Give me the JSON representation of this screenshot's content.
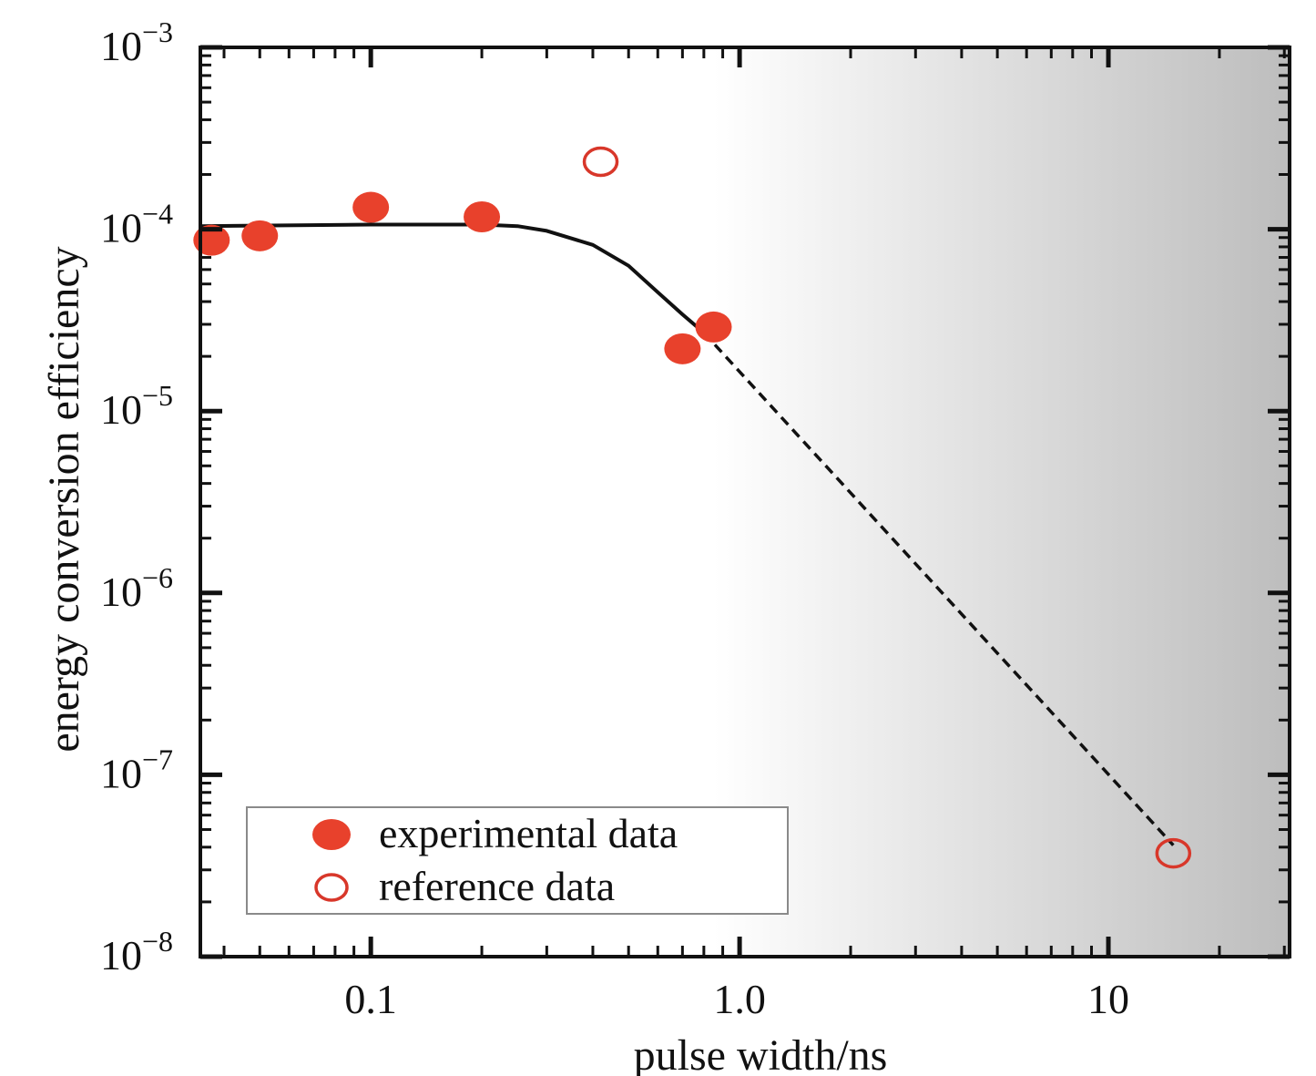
{
  "chart_data": {
    "type": "scatter",
    "title": "",
    "xlabel": "pulse width/ns",
    "ylabel": "energy conversion efficiency",
    "x_scale": "log",
    "y_scale": "log",
    "xlim": [
      0.0345,
      31
    ],
    "ylim": [
      1e-08,
      0.001
    ],
    "x_ticks": [
      {
        "value": 0.1,
        "label": "0.1"
      },
      {
        "value": 1.0,
        "label": "1.0"
      },
      {
        "value": 10,
        "label": "10"
      }
    ],
    "y_ticks": [
      {
        "value": 0.001,
        "base": "10",
        "exp": "−3"
      },
      {
        "value": 0.0001,
        "base": "10",
        "exp": "−4"
      },
      {
        "value": 1e-05,
        "base": "10",
        "exp": "−5"
      },
      {
        "value": 1e-06,
        "base": "10",
        "exp": "−6"
      },
      {
        "value": 1e-07,
        "base": "10",
        "exp": "−7"
      },
      {
        "value": 1e-08,
        "base": "10",
        "exp": "−8"
      }
    ],
    "series": [
      {
        "name": "experimental data",
        "marker": "filled-circle",
        "color": "#e8412c",
        "points": [
          {
            "x": 0.037,
            "y": 8.7e-05
          },
          {
            "x": 0.05,
            "y": 9.2e-05
          },
          {
            "x": 0.1,
            "y": 0.000132
          },
          {
            "x": 0.2,
            "y": 0.000117
          },
          {
            "x": 0.7,
            "y": 2.2e-05
          },
          {
            "x": 0.85,
            "y": 2.9e-05
          }
        ]
      },
      {
        "name": "reference data",
        "marker": "open-circle",
        "color": "#d8372a",
        "points": [
          {
            "x": 0.42,
            "y": 0.000235
          },
          {
            "x": 15,
            "y": 3.7e-08
          }
        ]
      }
    ],
    "fit_curve": {
      "style": "solid",
      "color": "#111111",
      "points": [
        {
          "x": 0.0345,
          "y": 0.000104
        },
        {
          "x": 0.1,
          "y": 0.000106
        },
        {
          "x": 0.2,
          "y": 0.000106
        },
        {
          "x": 0.25,
          "y": 0.000104
        },
        {
          "x": 0.3,
          "y": 9.8e-05
        },
        {
          "x": 0.4,
          "y": 8.2e-05
        },
        {
          "x": 0.5,
          "y": 6.3e-05
        },
        {
          "x": 0.6,
          "y": 4.5e-05
        },
        {
          "x": 0.7,
          "y": 3.4e-05
        },
        {
          "x": 0.8,
          "y": 2.7e-05
        }
      ]
    },
    "extrapolation": {
      "style": "dashed",
      "color": "#111111",
      "points": [
        {
          "x": 0.8,
          "y": 2.7e-05
        },
        {
          "x": 15,
          "y": 4.1e-08
        }
      ]
    },
    "shaded_region": {
      "x_start": 0.85,
      "x_end": 31,
      "colors": [
        "#ffffff",
        "#bdbdbd"
      ]
    },
    "grid": false,
    "legend_position": "bottom-left"
  }
}
